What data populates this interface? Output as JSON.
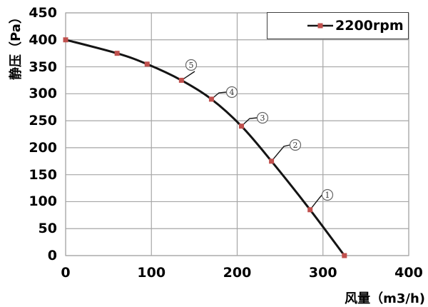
{
  "chart_data": {
    "type": "line",
    "title": "",
    "xlabel": "风量（m3/h)",
    "ylabel": "静压（Pa）",
    "xlim": [
      0,
      400
    ],
    "ylim": [
      0,
      450
    ],
    "x_ticks": [
      "0",
      "100",
      "200",
      "300",
      "400"
    ],
    "y_ticks": [
      "0",
      "50",
      "100",
      "150",
      "200",
      "250",
      "300",
      "350",
      "400",
      "450"
    ],
    "grid": true,
    "legend_position": "top-right-inside",
    "series": [
      {
        "name": "2200rpm",
        "marker": "square",
        "points": [
          [
            0,
            400
          ],
          [
            60,
            375
          ],
          [
            95,
            355
          ],
          [
            135,
            325
          ],
          [
            170,
            290
          ],
          [
            205,
            240
          ],
          [
            240,
            175
          ],
          [
            285,
            85
          ],
          [
            325,
            0
          ]
        ]
      }
    ],
    "annotations": [
      {
        "label": "1",
        "style": "circled-number",
        "x": 285,
        "y": 85
      },
      {
        "label": "2",
        "style": "circled-number",
        "x": 240,
        "y": 175
      },
      {
        "label": "3",
        "style": "circled-number",
        "x": 205,
        "y": 240
      },
      {
        "label": "4",
        "style": "circled-number",
        "x": 170,
        "y": 290
      },
      {
        "label": "5",
        "style": "circled-number",
        "x": 135,
        "y": 325
      }
    ]
  },
  "legend": {
    "label": "2200rpm"
  },
  "colors": {
    "curve": "#141414",
    "marker": "#c0504d",
    "grid": "#a6a6a6",
    "legend_border": "#404040",
    "annotation_circle": "#666666",
    "annotation_text": "#333333",
    "text": "#000000",
    "background": "#ffffff"
  }
}
